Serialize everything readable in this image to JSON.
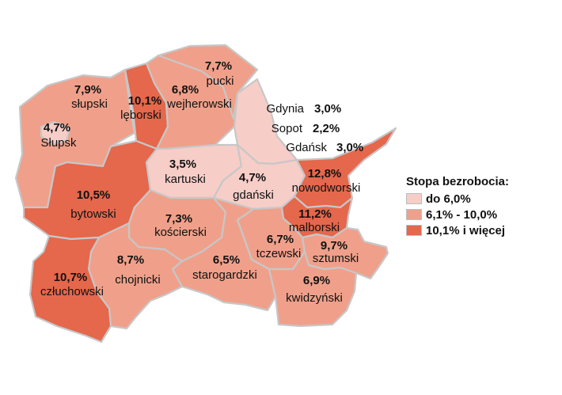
{
  "colors": {
    "low": "#f7cdc8",
    "mid": "#f0a08a",
    "high": "#e5674c",
    "border": "#c7c7c7"
  },
  "legend": {
    "title": "Stopa bezrobocia:",
    "items": [
      {
        "label": "do 6,0%",
        "class": "low"
      },
      {
        "label": "6,1% - 10,0%",
        "class": "mid"
      },
      {
        "label": "10,1% i więcej",
        "class": "high"
      }
    ]
  },
  "regions": {
    "pucki": {
      "name": "pucki",
      "value": "7,7%",
      "class": "mid"
    },
    "wejherowski": {
      "name": "wejherowski",
      "value": "6,8%",
      "class": "mid"
    },
    "leborski": {
      "name": "lęborski",
      "value": "10,1%",
      "class": "high"
    },
    "slupski": {
      "name": "słupski",
      "value": "7,9%",
      "class": "mid"
    },
    "slupsk": {
      "name": "Słupsk",
      "value": "4,7%",
      "class": "low"
    },
    "bytowski": {
      "name": "bytowski",
      "value": "10,5%",
      "class": "high"
    },
    "czluchowski": {
      "name": "człuchowski",
      "value": "10,7%",
      "class": "high"
    },
    "chojnicki": {
      "name": "chojnicki",
      "value": "8,7%",
      "class": "mid"
    },
    "koscierski": {
      "name": "kościerski",
      "value": "7,3%",
      "class": "mid"
    },
    "kartuski": {
      "name": "kartuski",
      "value": "3,5%",
      "class": "low"
    },
    "gdanski": {
      "name": "gdański",
      "value": "4,7%",
      "class": "low"
    },
    "starogardzki": {
      "name": "starogardzki",
      "value": "6,5%",
      "class": "mid"
    },
    "tczewski": {
      "name": "tczewski",
      "value": "6,7%",
      "class": "mid"
    },
    "malborski": {
      "name": "malborski",
      "value": "11,2%",
      "class": "high"
    },
    "nowodworski": {
      "name": "nowodworski",
      "value": "12,8%",
      "class": "high"
    },
    "sztumski": {
      "name": "sztumski",
      "value": "9,7%",
      "class": "mid"
    },
    "kwidzynski": {
      "name": "kwidzyński",
      "value": "6,9%",
      "class": "mid"
    },
    "tricity": {
      "class": "low"
    }
  },
  "cities": {
    "gdynia": {
      "name": "Gdynia",
      "value": "3,0%"
    },
    "sopot": {
      "name": "Sopot",
      "value": "2,2%"
    },
    "gdansk": {
      "name": "Gdańsk",
      "value": "3,0%"
    }
  }
}
